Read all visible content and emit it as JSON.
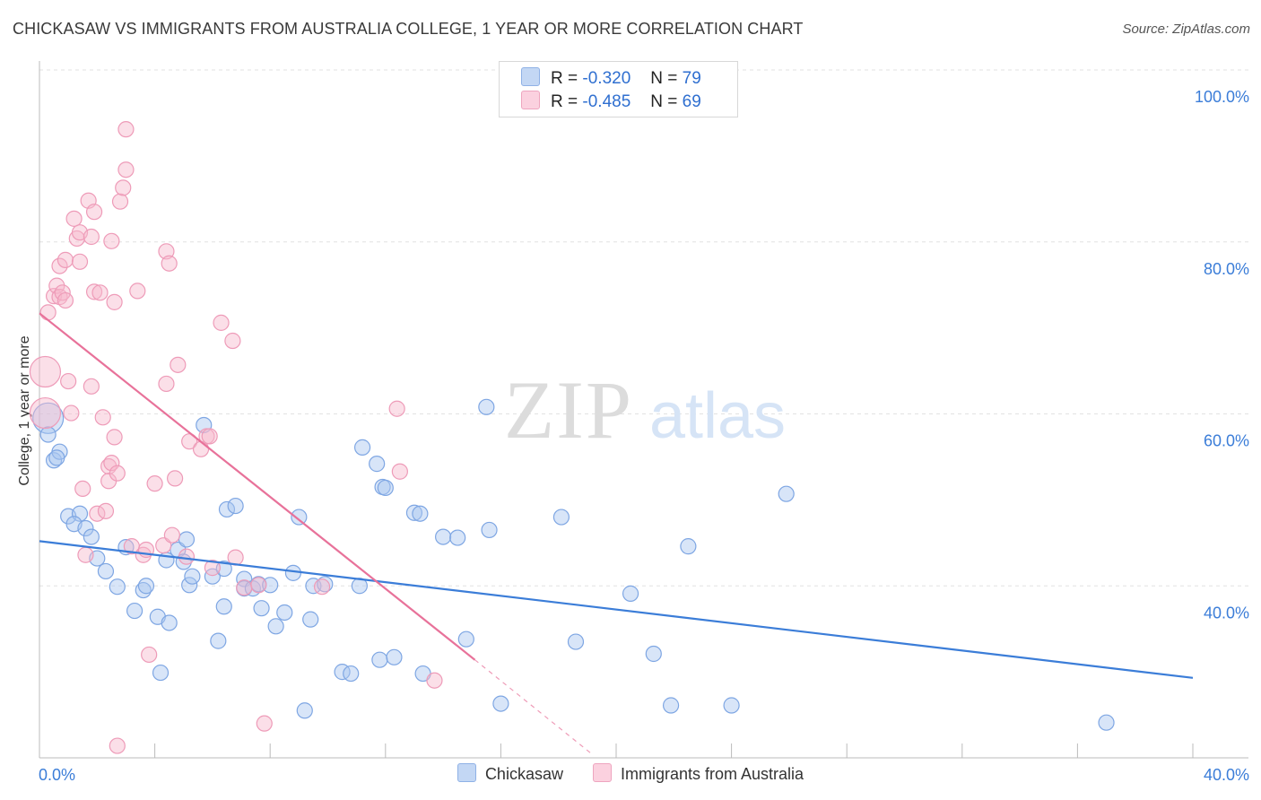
{
  "title": "CHICKASAW VS IMMIGRANTS FROM AUSTRALIA COLLEGE, 1 YEAR OR MORE CORRELATION CHART",
  "source": "Source: ZipAtlas.com",
  "watermark": {
    "zip": "ZIP",
    "atlas": "atlas"
  },
  "stats": [
    {
      "r_label": "R =",
      "r_value": "-0.320",
      "n_label": "N =",
      "n_value": "79",
      "color": "#a9c6f0"
    },
    {
      "r_label": "R =",
      "r_value": "-0.485",
      "n_label": "N =",
      "n_value": "69",
      "color": "#f6b8cc"
    }
  ],
  "legend": [
    {
      "label": "Chickasaw",
      "color": "#a9c6f0"
    },
    {
      "label": "Immigrants from Australia",
      "color": "#f6b8cc"
    }
  ],
  "chart_data": {
    "type": "scatter",
    "xlabel": "",
    "ylabel": "College, 1 year or more",
    "xlim": [
      0,
      40
    ],
    "ylim": [
      20,
      100
    ],
    "x_tick_labels": [
      "0.0%",
      "40.0%"
    ],
    "y_ticks": [
      40,
      60,
      80,
      100
    ],
    "y_tick_labels": [
      "40.0%",
      "60.0%",
      "80.0%",
      "100.0%"
    ],
    "grid": true,
    "legend_position": "bottom-center",
    "series": [
      {
        "name": "Chickasaw",
        "color": "#3b7dd8",
        "trend": {
          "x": [
            0,
            40
          ],
          "y": [
            45.2,
            29.3
          ],
          "dashed_extension": false
        },
        "points": [
          {
            "x": 0.3,
            "y": 59.5,
            "r": "big"
          },
          {
            "x": 0.3,
            "y": 57.6
          },
          {
            "x": 0.5,
            "y": 54.6
          },
          {
            "x": 0.7,
            "y": 55.6
          },
          {
            "x": 0.6,
            "y": 54.9
          },
          {
            "x": 1.0,
            "y": 48.1
          },
          {
            "x": 1.4,
            "y": 48.4
          },
          {
            "x": 1.2,
            "y": 47.2
          },
          {
            "x": 1.6,
            "y": 46.7
          },
          {
            "x": 1.8,
            "y": 45.7
          },
          {
            "x": 2.0,
            "y": 43.2
          },
          {
            "x": 2.3,
            "y": 41.7
          },
          {
            "x": 2.7,
            "y": 39.9
          },
          {
            "x": 3.0,
            "y": 44.5
          },
          {
            "x": 3.3,
            "y": 37.1
          },
          {
            "x": 3.6,
            "y": 39.5
          },
          {
            "x": 3.7,
            "y": 40.0
          },
          {
            "x": 4.1,
            "y": 36.4
          },
          {
            "x": 4.2,
            "y": 29.9
          },
          {
            "x": 4.4,
            "y": 43.0
          },
          {
            "x": 4.5,
            "y": 35.7
          },
          {
            "x": 4.8,
            "y": 44.2
          },
          {
            "x": 5.0,
            "y": 42.8
          },
          {
            "x": 5.2,
            "y": 40.1
          },
          {
            "x": 5.3,
            "y": 41.1
          },
          {
            "x": 5.1,
            "y": 45.4
          },
          {
            "x": 5.7,
            "y": 58.7
          },
          {
            "x": 6.0,
            "y": 41.1
          },
          {
            "x": 6.2,
            "y": 33.6
          },
          {
            "x": 6.4,
            "y": 42.0
          },
          {
            "x": 6.4,
            "y": 37.6
          },
          {
            "x": 6.5,
            "y": 48.9
          },
          {
            "x": 6.8,
            "y": 49.3
          },
          {
            "x": 7.1,
            "y": 40.8
          },
          {
            "x": 7.1,
            "y": 39.7
          },
          {
            "x": 7.4,
            "y": 39.7
          },
          {
            "x": 7.6,
            "y": 40.2
          },
          {
            "x": 7.7,
            "y": 37.4
          },
          {
            "x": 8.0,
            "y": 40.1
          },
          {
            "x": 8.2,
            "y": 35.3
          },
          {
            "x": 8.5,
            "y": 36.9
          },
          {
            "x": 8.8,
            "y": 41.5
          },
          {
            "x": 9.0,
            "y": 48.0
          },
          {
            "x": 9.4,
            "y": 36.1
          },
          {
            "x": 9.5,
            "y": 40.0
          },
          {
            "x": 9.9,
            "y": 40.2
          },
          {
            "x": 9.2,
            "y": 25.5
          },
          {
            "x": 10.5,
            "y": 30.0
          },
          {
            "x": 10.8,
            "y": 29.8
          },
          {
            "x": 11.1,
            "y": 40.0
          },
          {
            "x": 11.2,
            "y": 56.1
          },
          {
            "x": 11.7,
            "y": 54.2
          },
          {
            "x": 11.9,
            "y": 51.5
          },
          {
            "x": 12.0,
            "y": 51.4
          },
          {
            "x": 11.8,
            "y": 31.4
          },
          {
            "x": 12.3,
            "y": 31.7
          },
          {
            "x": 13.0,
            "y": 48.5
          },
          {
            "x": 13.2,
            "y": 48.4
          },
          {
            "x": 13.3,
            "y": 29.8
          },
          {
            "x": 14.0,
            "y": 45.7
          },
          {
            "x": 14.5,
            "y": 45.6
          },
          {
            "x": 14.8,
            "y": 33.8
          },
          {
            "x": 15.5,
            "y": 60.8
          },
          {
            "x": 15.6,
            "y": 46.5
          },
          {
            "x": 16.0,
            "y": 26.3
          },
          {
            "x": 18.1,
            "y": 48.0
          },
          {
            "x": 18.6,
            "y": 33.5
          },
          {
            "x": 20.5,
            "y": 39.1
          },
          {
            "x": 21.3,
            "y": 32.1
          },
          {
            "x": 21.9,
            "y": 26.1
          },
          {
            "x": 22.5,
            "y": 44.6
          },
          {
            "x": 24.0,
            "y": 26.1
          },
          {
            "x": 25.9,
            "y": 50.7
          },
          {
            "x": 37.0,
            "y": 24.1
          }
        ]
      },
      {
        "name": "Immigrants from Australia",
        "color": "#e8729a",
        "trend": {
          "x": [
            0,
            15.1
          ],
          "y": [
            71.7,
            31.4
          ],
          "dashed_extension": true,
          "dash_to": {
            "x": 19.1,
            "y": 20.6
          }
        },
        "points": [
          {
            "x": 0.2,
            "y": 64.9,
            "r": "big"
          },
          {
            "x": 0.2,
            "y": 60.1,
            "r": "big"
          },
          {
            "x": 0.3,
            "y": 71.8
          },
          {
            "x": 0.5,
            "y": 73.7
          },
          {
            "x": 0.6,
            "y": 74.9
          },
          {
            "x": 0.7,
            "y": 73.6
          },
          {
            "x": 0.8,
            "y": 74.1
          },
          {
            "x": 0.7,
            "y": 77.2
          },
          {
            "x": 0.9,
            "y": 73.2
          },
          {
            "x": 0.9,
            "y": 77.9
          },
          {
            "x": 1.0,
            "y": 63.8
          },
          {
            "x": 1.1,
            "y": 60.1
          },
          {
            "x": 1.2,
            "y": 82.7
          },
          {
            "x": 1.3,
            "y": 80.4
          },
          {
            "x": 1.4,
            "y": 81.1
          },
          {
            "x": 1.4,
            "y": 77.7
          },
          {
            "x": 1.5,
            "y": 51.3
          },
          {
            "x": 1.6,
            "y": 43.6
          },
          {
            "x": 1.7,
            "y": 84.8
          },
          {
            "x": 1.8,
            "y": 63.2
          },
          {
            "x": 1.8,
            "y": 80.6
          },
          {
            "x": 1.9,
            "y": 83.5
          },
          {
            "x": 1.9,
            "y": 74.2
          },
          {
            "x": 2.0,
            "y": 48.4
          },
          {
            "x": 2.1,
            "y": 74.1
          },
          {
            "x": 2.2,
            "y": 59.6
          },
          {
            "x": 2.3,
            "y": 48.7
          },
          {
            "x": 2.4,
            "y": 53.9
          },
          {
            "x": 2.4,
            "y": 52.2
          },
          {
            "x": 2.5,
            "y": 54.3
          },
          {
            "x": 2.5,
            "y": 80.1
          },
          {
            "x": 2.6,
            "y": 73.0
          },
          {
            "x": 2.6,
            "y": 57.3
          },
          {
            "x": 2.7,
            "y": 53.1
          },
          {
            "x": 2.7,
            "y": 21.4
          },
          {
            "x": 2.8,
            "y": 84.7
          },
          {
            "x": 2.9,
            "y": 86.3
          },
          {
            "x": 3.0,
            "y": 93.1
          },
          {
            "x": 3.0,
            "y": 88.4
          },
          {
            "x": 3.2,
            "y": 44.6
          },
          {
            "x": 3.4,
            "y": 74.3
          },
          {
            "x": 3.6,
            "y": 43.6
          },
          {
            "x": 3.7,
            "y": 44.2
          },
          {
            "x": 3.8,
            "y": 32.0
          },
          {
            "x": 4.0,
            "y": 51.9
          },
          {
            "x": 4.3,
            "y": 44.7
          },
          {
            "x": 4.4,
            "y": 63.5
          },
          {
            "x": 4.4,
            "y": 78.9
          },
          {
            "x": 4.5,
            "y": 77.5
          },
          {
            "x": 4.6,
            "y": 45.9
          },
          {
            "x": 4.7,
            "y": 52.5
          },
          {
            "x": 4.8,
            "y": 65.7
          },
          {
            "x": 5.1,
            "y": 43.4
          },
          {
            "x": 5.2,
            "y": 56.8
          },
          {
            "x": 5.6,
            "y": 55.9
          },
          {
            "x": 5.8,
            "y": 57.4
          },
          {
            "x": 5.9,
            "y": 57.4
          },
          {
            "x": 6.0,
            "y": 42.1
          },
          {
            "x": 6.3,
            "y": 70.6
          },
          {
            "x": 6.7,
            "y": 68.5
          },
          {
            "x": 6.8,
            "y": 43.3
          },
          {
            "x": 7.1,
            "y": 39.8
          },
          {
            "x": 7.6,
            "y": 40.1
          },
          {
            "x": 7.8,
            "y": 24.0
          },
          {
            "x": 9.8,
            "y": 39.9
          },
          {
            "x": 12.4,
            "y": 60.6
          },
          {
            "x": 12.5,
            "y": 53.3
          },
          {
            "x": 13.7,
            "y": 29.0
          }
        ]
      }
    ]
  }
}
